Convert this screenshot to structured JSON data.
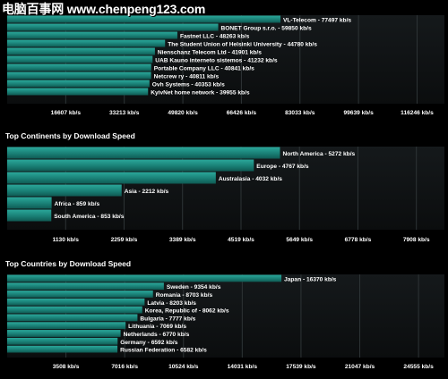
{
  "watermark": "电脑百事网 www.chenpeng123.com",
  "charts": [
    {
      "title": "",
      "chart_data": {
        "type": "bar",
        "unit": "kb/s",
        "categories": [
          "VL-Telecom",
          "BONET Group s.r.o.",
          "Fastnet LLC",
          "The Student Union of Helsinki University",
          "Nienschanz Telecom Ltd",
          "UAB Kauno interneto sistemos",
          "Portable Company LLC",
          "Netcrew ry",
          "Ovh Systems",
          "KyivNet home network"
        ],
        "values": [
          77497,
          59850,
          48263,
          44780,
          41901,
          41232,
          40841,
          40811,
          40353,
          39955
        ],
        "bar_labels": [
          "VL-Telecom - 77497 kb/s",
          "BONET Group s.r.o. - 59850 kb/s",
          "Fastnet LLC - 48263 kb/s",
          "The Student Union of Helsinki University - 44780 kb/s",
          "Nienschanz Telecom Ltd - 41901 kb/s",
          "UAB Kauno interneto sistemos - 41232 kb/s",
          "Portable Company LLC - 40841 kb/s",
          "Netcrew ry - 40811 kb/s",
          "Ovh Systems - 40353 kb/s",
          "KyivNet home network - 39955 kb/s"
        ],
        "ticks": [
          16607,
          33213,
          49820,
          66426,
          83033,
          99639,
          116246
        ],
        "tick_labels": [
          "16607 kb/s",
          "33213 kb/s",
          "49820 kb/s",
          "66426 kb/s",
          "83033 kb/s",
          "99639 kb/s",
          "116246 kb/s"
        ],
        "xlim": [
          0,
          124000
        ]
      }
    },
    {
      "title": "Top Continents by Download Speed",
      "chart_data": {
        "type": "bar",
        "unit": "kb/s",
        "categories": [
          "North America",
          "Europe",
          "Australasia",
          "Asia",
          "Africa",
          "South America"
        ],
        "values": [
          5272,
          4767,
          4032,
          2212,
          859,
          853
        ],
        "bar_labels": [
          "North America - 5272 kb/s",
          "Europe - 4767 kb/s",
          "Australasia - 4032 kb/s",
          "Asia - 2212 kb/s",
          "Africa - 859 kb/s",
          "South America - 853 kb/s"
        ],
        "ticks": [
          1130,
          2259,
          3389,
          4519,
          5649,
          6778,
          7908
        ],
        "tick_labels": [
          "1130 kb/s",
          "2259 kb/s",
          "3389 kb/s",
          "4519 kb/s",
          "5649 kb/s",
          "6778 kb/s",
          "7908 kb/s"
        ],
        "xlim": [
          0,
          8450
        ]
      }
    },
    {
      "title": "Top Countries by Download Speed",
      "chart_data": {
        "type": "bar",
        "unit": "kb/s",
        "categories": [
          "Japan",
          "Sweden",
          "Romania",
          "Latvia",
          "Korea, Republic of",
          "Bulgaria",
          "Lithuania",
          "Netherlands",
          "Germany",
          "Russian Federation"
        ],
        "values": [
          16370,
          9354,
          8703,
          8203,
          8062,
          7777,
          7069,
          6770,
          6592,
          6582
        ],
        "bar_labels": [
          "Japan - 16370 kb/s",
          "Sweden - 9354 kb/s",
          "Romania - 8703 kb/s",
          "Latvia - 8203 kb/s",
          "Korea, Republic of - 8062 kb/s",
          "Bulgaria - 7777 kb/s",
          "Lithuania - 7069 kb/s",
          "Netherlands - 6770 kb/s",
          "Germany - 6592 kb/s",
          "Russian Federation - 6582 kb/s"
        ],
        "ticks": [
          3508,
          7016,
          10524,
          14031,
          17539,
          21047,
          24555
        ],
        "tick_labels": [
          "3508 kb/s",
          "7016 kb/s",
          "10524 kb/s",
          "14031 kb/s",
          "17539 kb/s",
          "21047 kb/s",
          "24555 kb/s"
        ],
        "xlim": [
          0,
          26100
        ]
      }
    }
  ]
}
